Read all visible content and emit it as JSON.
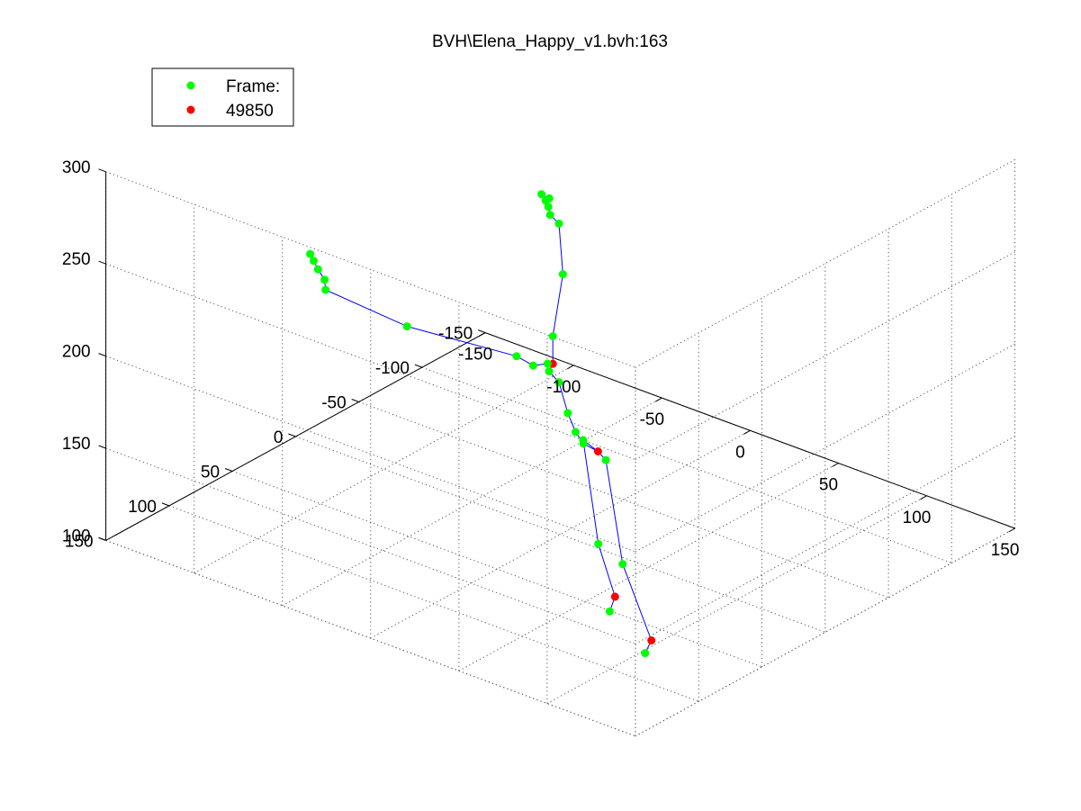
{
  "chart_data": {
    "type": "scatter",
    "title": "BVH\\Elena_Happy_v1.bvh:163",
    "legend": {
      "placement": "top-left",
      "entries": [
        {
          "label": "Frame:",
          "color": "#00ff00"
        },
        {
          "label": "49850",
          "color": "#ff0000"
        }
      ]
    },
    "axes": {
      "x": {
        "ticks": [
          "-150",
          "-100",
          "-50",
          "0",
          "50",
          "100",
          "150"
        ],
        "range": [
          -150,
          150
        ]
      },
      "y": {
        "ticks": [
          "-150",
          "-100",
          "-50",
          "0",
          "50",
          "100",
          "150"
        ],
        "range": [
          -150,
          150
        ]
      },
      "z": {
        "ticks": [
          "100",
          "150",
          "200",
          "250",
          "300"
        ],
        "range": [
          100,
          300
        ]
      }
    },
    "grid": true,
    "colors": {
      "joint": "#00ff00",
      "marked_joint": "#ff0000",
      "bone": "#0000ff",
      "grid": "#555555"
    },
    "joints": [
      {
        "x": 7,
        "y": -20,
        "z": 140,
        "marked": true
      },
      {
        "x": -5,
        "y": -25,
        "z": 140,
        "marked": false
      },
      {
        "x": 5,
        "y": -23,
        "z": 88,
        "marked": false
      },
      {
        "x": 8,
        "y": -32,
        "z": 57,
        "marked": true
      },
      {
        "x": 5,
        "y": -32,
        "z": 48,
        "marked": false
      },
      {
        "x": 15,
        "y": -15,
        "z": 140,
        "marked": false
      },
      {
        "x": 36,
        "y": 1,
        "z": 97,
        "marked": false
      },
      {
        "x": 53,
        "y": 2,
        "z": 62,
        "marked": true
      },
      {
        "x": 53,
        "y": 7,
        "z": 57,
        "marked": false
      },
      {
        "x": 3,
        "y": -14,
        "z": 145,
        "marked": false
      },
      {
        "x": 0,
        "y": -12,
        "z": 151,
        "marked": false
      },
      {
        "x": -3,
        "y": -10,
        "z": 161,
        "marked": false
      },
      {
        "x": -8,
        "y": -10,
        "z": 176,
        "marked": false
      },
      {
        "x": -10,
        "y": -5,
        "z": 183,
        "marked": false
      },
      {
        "x": -10,
        "y": -8,
        "z": 186,
        "marked": true
      },
      {
        "x": -13,
        "y": -8,
        "z": 185,
        "marked": false
      },
      {
        "x": -10,
        "y": -8,
        "z": 201,
        "marked": false
      },
      {
        "x": -5,
        "y": -9,
        "z": 236,
        "marked": false
      },
      {
        "x": -8,
        "y": -10,
        "z": 262,
        "marked": false
      },
      {
        "x": -13,
        "y": -10,
        "z": 265,
        "marked": false
      },
      {
        "x": -14,
        "y": -10,
        "z": 269,
        "marked": false
      },
      {
        "x": -14,
        "y": -8,
        "z": 273,
        "marked": false
      },
      {
        "x": -12,
        "y": -8,
        "z": 275,
        "marked": false
      },
      {
        "x": -15,
        "y": -6,
        "z": 277,
        "marked": false
      },
      {
        "x": -19,
        "y": -5,
        "z": 183,
        "marked": false
      },
      {
        "x": -27,
        "y": -3,
        "z": 186,
        "marked": false
      },
      {
        "x": -79,
        "y": 11,
        "z": 189,
        "marked": false
      },
      {
        "x": -128,
        "y": 7,
        "z": 190,
        "marked": false
      },
      {
        "x": -130,
        "y": 5,
        "z": 194,
        "marked": false
      },
      {
        "x": -133,
        "y": 6,
        "z": 199,
        "marked": false
      },
      {
        "x": -134,
        "y": 8,
        "z": 204,
        "marked": false
      },
      {
        "x": -136,
        "y": 8,
        "z": 207,
        "marked": false
      }
    ],
    "bones": [
      [
        0,
        1
      ],
      [
        1,
        2
      ],
      [
        2,
        3
      ],
      [
        3,
        4
      ],
      [
        0,
        5
      ],
      [
        5,
        6
      ],
      [
        6,
        7
      ],
      [
        7,
        8
      ],
      [
        0,
        9
      ],
      [
        9,
        10
      ],
      [
        10,
        11
      ],
      [
        11,
        12
      ],
      [
        12,
        13
      ],
      [
        13,
        14
      ],
      [
        14,
        16
      ],
      [
        16,
        17
      ],
      [
        17,
        18
      ],
      [
        18,
        19
      ],
      [
        19,
        20
      ],
      [
        20,
        21
      ],
      [
        21,
        22
      ],
      [
        22,
        23
      ],
      [
        14,
        15
      ],
      [
        15,
        24
      ],
      [
        24,
        25
      ],
      [
        25,
        26
      ],
      [
        26,
        27
      ],
      [
        27,
        28
      ],
      [
        28,
        29
      ],
      [
        29,
        30
      ],
      [
        30,
        31
      ]
    ]
  }
}
